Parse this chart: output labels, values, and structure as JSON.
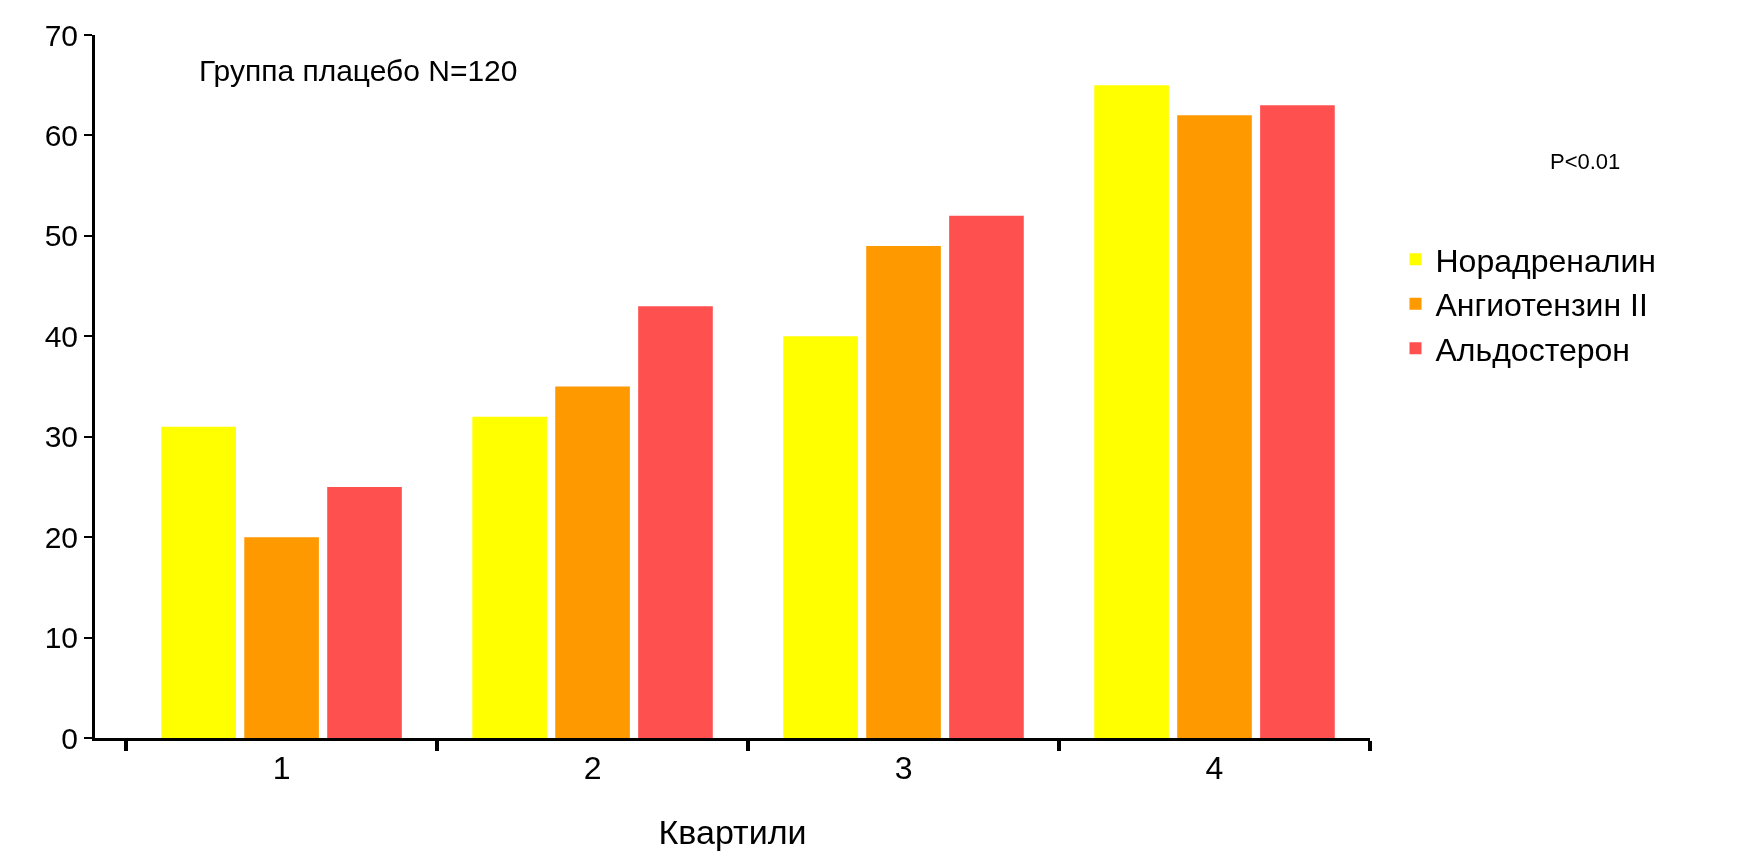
{
  "chart_data": {
    "type": "bar",
    "xlabel": "Квартили",
    "categories": [
      "1",
      "2",
      "3",
      "4"
    ],
    "series": [
      {
        "name": "Норадреналин",
        "color": "#ffff00",
        "values": [
          31,
          32,
          40,
          65
        ]
      },
      {
        "name": "Ангиотензин II",
        "color": "#ff9900",
        "values": [
          20,
          35,
          49,
          62
        ]
      },
      {
        "name": "Альдостерон",
        "color": "#ff5050",
        "values": [
          25,
          43,
          52,
          63
        ]
      }
    ],
    "ylim": [
      0,
      70
    ],
    "yticks": [
      0,
      10,
      20,
      30,
      40,
      50,
      60,
      70
    ],
    "grid": false,
    "legend": "right",
    "annotations": [
      "Группа плацебо N=120",
      "P<0.01"
    ]
  }
}
